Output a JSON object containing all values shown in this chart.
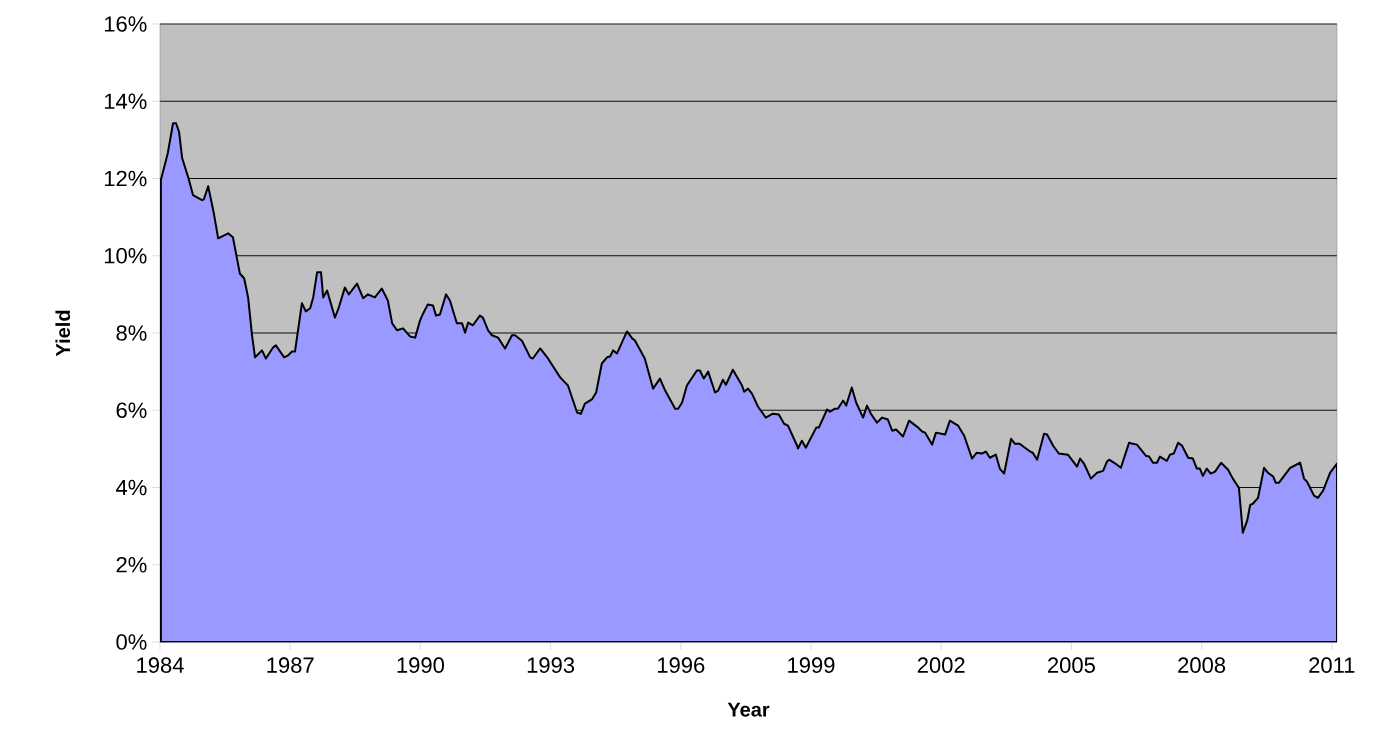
{
  "chart_data": {
    "type": "area",
    "xlabel": "Year",
    "ylabel": "Yield",
    "color": "#9999ff",
    "grid": "y",
    "xlim": [
      1984,
      2011.12
    ],
    "ylim": [
      0,
      16
    ],
    "xticks": [
      1984,
      1987,
      1990,
      1993,
      1996,
      1999,
      2002,
      2005,
      2008,
      2011
    ],
    "yticks": [
      {
        "value": 0,
        "label": "0%"
      },
      {
        "value": 2,
        "label": "2%"
      },
      {
        "value": 4,
        "label": "4%"
      },
      {
        "value": 6,
        "label": "6%"
      },
      {
        "value": 8,
        "label": "8%"
      },
      {
        "value": 10,
        "label": "10%"
      },
      {
        "value": 12,
        "label": "12%"
      },
      {
        "value": 14,
        "label": "14%"
      },
      {
        "value": 16,
        "label": "16%"
      }
    ],
    "x": [
      1984.02,
      1984.18,
      1984.3,
      1984.37,
      1984.44,
      1984.51,
      1984.65,
      1984.76,
      1984.97,
      1985.01,
      1985.11,
      1985.24,
      1985.34,
      1985.57,
      1985.68,
      1985.84,
      1985.94,
      1986.03,
      1986.12,
      1986.19,
      1986.35,
      1986.44,
      1986.6,
      1986.67,
      1986.86,
      1986.95,
      1987.04,
      1987.11,
      1987.27,
      1987.36,
      1987.46,
      1987.53,
      1987.62,
      1987.71,
      1987.76,
      1987.85,
      1988.03,
      1988.12,
      1988.26,
      1988.35,
      1988.54,
      1988.68,
      1988.79,
      1988.95,
      1989.11,
      1989.25,
      1989.35,
      1989.46,
      1989.6,
      1989.76,
      1989.88,
      1989.99,
      1990.06,
      1990.17,
      1990.29,
      1990.36,
      1990.45,
      1990.59,
      1990.68,
      1990.84,
      1990.96,
      1991.03,
      1991.1,
      1991.21,
      1991.37,
      1991.44,
      1991.56,
      1991.65,
      1991.79,
      1991.95,
      1992.11,
      1992.18,
      1992.34,
      1992.53,
      1992.59,
      1992.76,
      1992.94,
      1993.22,
      1993.4,
      1993.61,
      1993.7,
      1993.79,
      1993.95,
      1994.05,
      1994.18,
      1994.3,
      1994.37,
      1994.44,
      1994.53,
      1994.76,
      1994.88,
      1994.94,
      1995.17,
      1995.36,
      1995.52,
      1995.64,
      1995.87,
      1995.94,
      1996.03,
      1996.14,
      1996.37,
      1996.44,
      1996.53,
      1996.63,
      1996.79,
      1996.86,
      1996.97,
      1997.04,
      1997.2,
      1997.41,
      1997.46,
      1997.55,
      1997.64,
      1997.78,
      1997.96,
      1998.12,
      1998.26,
      1998.38,
      1998.47,
      1998.68,
      1998.7,
      1998.79,
      1998.88,
      1999.12,
      1999.18,
      1999.37,
      1999.44,
      1999.55,
      1999.62,
      1999.74,
      1999.81,
      1999.94,
      2000.04,
      2000.2,
      2000.29,
      2000.38,
      2000.52,
      2000.64,
      2000.77,
      2000.87,
      2000.96,
      2001.12,
      2001.26,
      2001.47,
      2001.56,
      2001.63,
      2001.79,
      2001.88,
      2002.09,
      2002.2,
      2002.39,
      2002.53,
      2002.71,
      2002.82,
      2002.94,
      2003.03,
      2003.12,
      2003.26,
      2003.35,
      2003.45,
      2003.61,
      2003.7,
      2003.81,
      2003.93,
      2004.05,
      2004.11,
      2004.21,
      2004.37,
      2004.44,
      2004.58,
      2004.71,
      2004.92,
      2005.13,
      2005.2,
      2005.29,
      2005.45,
      2005.59,
      2005.73,
      2005.82,
      2005.87,
      2006.05,
      2006.14,
      2006.33,
      2006.42,
      2006.51,
      2006.72,
      2006.79,
      2006.88,
      2006.97,
      2007.04,
      2007.2,
      2007.27,
      2007.36,
      2007.46,
      2007.55,
      2007.69,
      2007.8,
      2007.89,
      2007.96,
      2008.03,
      2008.12,
      2008.21,
      2008.31,
      2008.45,
      2008.61,
      2008.72,
      2008.86,
      2008.95,
      2009.05,
      2009.12,
      2009.18,
      2009.3,
      2009.44,
      2009.53,
      2009.65,
      2009.71,
      2009.78,
      2010.04,
      2010.27,
      2010.36,
      2010.43,
      2010.59,
      2010.68,
      2010.8,
      2010.96,
      2011.12
    ],
    "values": [
      11.96,
      12.66,
      13.43,
      13.43,
      13.2,
      12.53,
      12.03,
      11.57,
      11.44,
      11.46,
      11.8,
      11.1,
      10.45,
      10.58,
      10.48,
      9.54,
      9.41,
      8.92,
      7.94,
      7.37,
      7.55,
      7.34,
      7.62,
      7.68,
      7.37,
      7.42,
      7.52,
      7.52,
      8.77,
      8.56,
      8.64,
      8.92,
      9.57,
      9.57,
      8.92,
      9.1,
      8.4,
      8.66,
      9.18,
      9.0,
      9.28,
      8.9,
      9.0,
      8.92,
      9.15,
      8.84,
      8.25,
      8.07,
      8.12,
      7.91,
      7.88,
      8.32,
      8.5,
      8.74,
      8.71,
      8.45,
      8.48,
      9.0,
      8.84,
      8.25,
      8.25,
      8.01,
      8.27,
      8.2,
      8.45,
      8.4,
      8.07,
      7.94,
      7.88,
      7.6,
      7.94,
      7.94,
      7.8,
      7.37,
      7.34,
      7.6,
      7.34,
      6.85,
      6.64,
      5.94,
      5.91,
      6.17,
      6.28,
      6.46,
      7.21,
      7.37,
      7.39,
      7.55,
      7.47,
      8.04,
      7.86,
      7.81,
      7.34,
      6.56,
      6.82,
      6.51,
      6.04,
      6.04,
      6.2,
      6.64,
      7.03,
      7.03,
      6.82,
      7.0,
      6.46,
      6.51,
      6.79,
      6.66,
      7.05,
      6.64,
      6.48,
      6.56,
      6.43,
      6.09,
      5.81,
      5.91,
      5.89,
      5.65,
      5.6,
      5.08,
      5.01,
      5.21,
      5.03,
      5.55,
      5.55,
      6.02,
      5.96,
      6.04,
      6.04,
      6.25,
      6.12,
      6.59,
      6.2,
      5.81,
      6.12,
      5.91,
      5.68,
      5.81,
      5.76,
      5.47,
      5.5,
      5.32,
      5.73,
      5.55,
      5.45,
      5.42,
      5.11,
      5.42,
      5.37,
      5.73,
      5.6,
      5.34,
      4.75,
      4.9,
      4.88,
      4.93,
      4.77,
      4.85,
      4.49,
      4.36,
      5.26,
      5.13,
      5.13,
      5.03,
      4.93,
      4.9,
      4.72,
      5.39,
      5.37,
      5.08,
      4.88,
      4.85,
      4.54,
      4.75,
      4.62,
      4.23,
      4.38,
      4.43,
      4.67,
      4.72,
      4.59,
      4.51,
      5.16,
      5.13,
      5.11,
      4.82,
      4.8,
      4.64,
      4.64,
      4.8,
      4.69,
      4.85,
      4.88,
      5.16,
      5.08,
      4.77,
      4.75,
      4.49,
      4.49,
      4.3,
      4.49,
      4.36,
      4.41,
      4.64,
      4.46,
      4.23,
      3.99,
      2.83,
      3.14,
      3.55,
      3.58,
      3.73,
      4.51,
      4.38,
      4.28,
      4.12,
      4.12,
      4.51,
      4.64,
      4.23,
      4.15,
      3.79,
      3.73,
      3.92,
      4.38,
      4.62
    ]
  }
}
